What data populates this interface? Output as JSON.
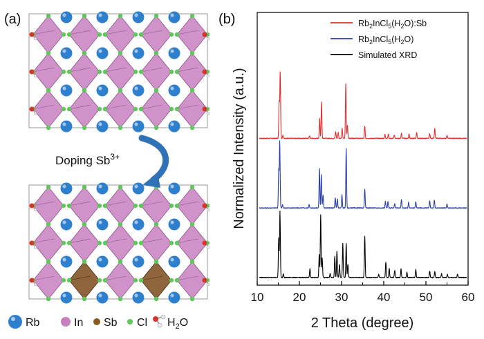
{
  "panels": {
    "a_label": "(a)",
    "b_label": "(b)"
  },
  "doping": {
    "text": "Doping Sb",
    "superscript": "3+"
  },
  "atom_legend": {
    "rb": "Rb",
    "in": "In",
    "sb": "Sb",
    "cl": "Cl",
    "h2o_main": "H",
    "h2o_sub": "2",
    "h2o_tail": "O"
  },
  "colors": {
    "rb": "#2f7fcf",
    "in": "#c77fc0",
    "sb": "#8a5a1e",
    "cl": "#5ec95a",
    "h2o_o": "#d8352a",
    "h2o_h": "#eeeeee",
    "arrow": "#2f72b8",
    "sb_doped": "#e03030",
    "pristine": "#2a3fa8",
    "simulated": "#000000"
  },
  "chart_data": {
    "type": "line",
    "xlabel": "2 Theta (degree)",
    "ylabel": "Normalized Intensity (a.u.)",
    "xlim": [
      10,
      60
    ],
    "xticks": [
      10,
      20,
      30,
      40,
      50,
      60
    ],
    "legend_position": "top-right",
    "series": [
      {
        "name_main": "Rb",
        "name_sub1": "2",
        "name_mid": "InCl",
        "name_sub2": "5",
        "name_tail": "(H",
        "name_sub3": "2",
        "name_end": "O):Sb",
        "color": "#e03030",
        "offset": 2.1,
        "peaks": [
          [
            15.2,
            0.55
          ],
          [
            15.45,
            1.0
          ],
          [
            16.1,
            0.05
          ],
          [
            22.4,
            0.04
          ],
          [
            24.8,
            0.3
          ],
          [
            25.25,
            0.55
          ],
          [
            28.6,
            0.1
          ],
          [
            29.2,
            0.09
          ],
          [
            30.15,
            0.15
          ],
          [
            31.0,
            0.83
          ],
          [
            31.4,
            0.2
          ],
          [
            35.5,
            0.18
          ],
          [
            40.3,
            0.06
          ],
          [
            41.1,
            0.07
          ],
          [
            42.5,
            0.05
          ],
          [
            44.2,
            0.08
          ],
          [
            46.0,
            0.07
          ],
          [
            47.8,
            0.09
          ],
          [
            50.9,
            0.07
          ],
          [
            52.1,
            0.15
          ],
          [
            55.0,
            0.05
          ]
        ]
      },
      {
        "name_main": "Rb",
        "name_sub1": "2",
        "name_mid": "InCl",
        "name_sub2": "5",
        "name_tail": "(H",
        "name_sub3": "2",
        "name_end": "O)",
        "color": "#2a3fa8",
        "offset": 1.05,
        "peaks": [
          [
            15.1,
            0.58
          ],
          [
            15.35,
            1.0
          ],
          [
            16.0,
            0.05
          ],
          [
            22.3,
            0.05
          ],
          [
            24.75,
            0.6
          ],
          [
            25.2,
            0.5
          ],
          [
            25.6,
            0.2
          ],
          [
            28.5,
            0.15
          ],
          [
            29.0,
            0.14
          ],
          [
            30.1,
            0.2
          ],
          [
            31.1,
            0.9
          ],
          [
            35.5,
            0.28
          ],
          [
            40.4,
            0.1
          ],
          [
            41.0,
            0.1
          ],
          [
            42.6,
            0.07
          ],
          [
            44.2,
            0.13
          ],
          [
            45.9,
            0.09
          ],
          [
            47.6,
            0.1
          ],
          [
            50.9,
            0.11
          ],
          [
            52.0,
            0.12
          ],
          [
            55.0,
            0.06
          ]
        ]
      },
      {
        "name": "Simulated XRD",
        "color": "#000000",
        "offset": 0.0,
        "peaks": [
          [
            15.1,
            0.6
          ],
          [
            15.4,
            1.0
          ],
          [
            16.2,
            0.06
          ],
          [
            22.5,
            0.13
          ],
          [
            24.7,
            0.35
          ],
          [
            25.05,
            0.95
          ],
          [
            25.4,
            0.3
          ],
          [
            27.3,
            0.06
          ],
          [
            28.4,
            0.32
          ],
          [
            28.9,
            0.4
          ],
          [
            29.5,
            0.2
          ],
          [
            30.3,
            0.52
          ],
          [
            31.1,
            0.52
          ],
          [
            31.5,
            0.2
          ],
          [
            35.5,
            0.62
          ],
          [
            38.8,
            0.05
          ],
          [
            40.5,
            0.23
          ],
          [
            41.3,
            0.14
          ],
          [
            42.6,
            0.11
          ],
          [
            44.1,
            0.13
          ],
          [
            45.5,
            0.08
          ],
          [
            47.6,
            0.12
          ],
          [
            50.9,
            0.1
          ],
          [
            52.1,
            0.09
          ],
          [
            53.7,
            0.06
          ],
          [
            55.1,
            0.05
          ],
          [
            57.5,
            0.05
          ]
        ]
      }
    ]
  }
}
